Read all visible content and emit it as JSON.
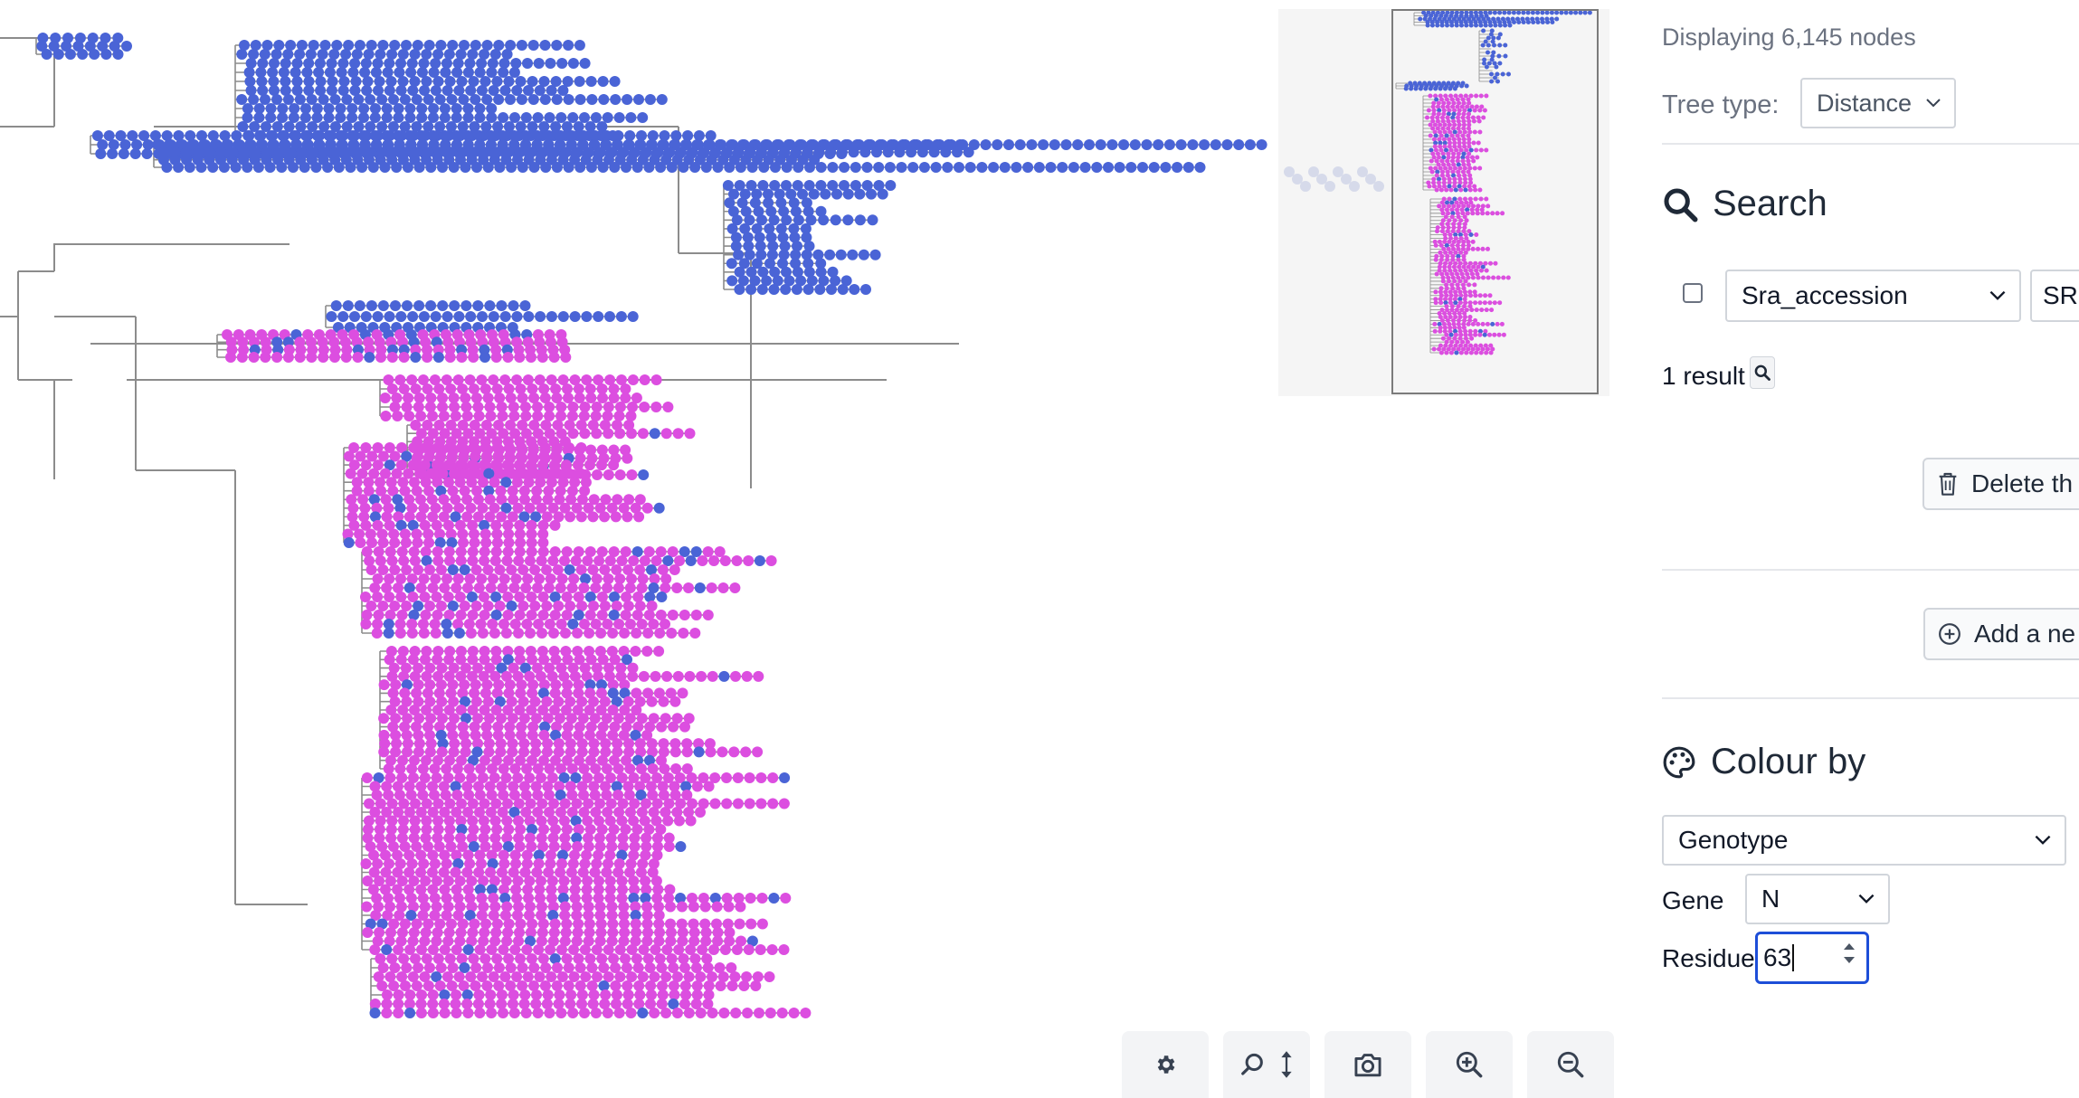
{
  "colors": {
    "blue": "#4a64d6",
    "pink": "#dc4ee0",
    "branch": "#8c8c8c"
  },
  "sidebar": {
    "displaying": "Displaying 6,145 nodes",
    "tree_type_label": "Tree type:",
    "tree_type_value": "Distance",
    "search_heading": "Search",
    "search_field": "Sra_accession",
    "search_value": "SRR",
    "result_count": "1 result",
    "delete_label": "Delete th",
    "add_label": "Add a ne",
    "colour_heading": "Colour by",
    "colour_value": "Genotype",
    "gene_label": "Gene",
    "gene_value": "N",
    "residue_label": "Residue",
    "residue_value": "63"
  },
  "toolbar": {
    "settings": "gear-icon",
    "zoom_vertical": "search-vertical-icon",
    "screenshot": "camera-icon",
    "zoom_in": "zoom-in-icon",
    "zoom_out": "zoom-out-icon"
  }
}
